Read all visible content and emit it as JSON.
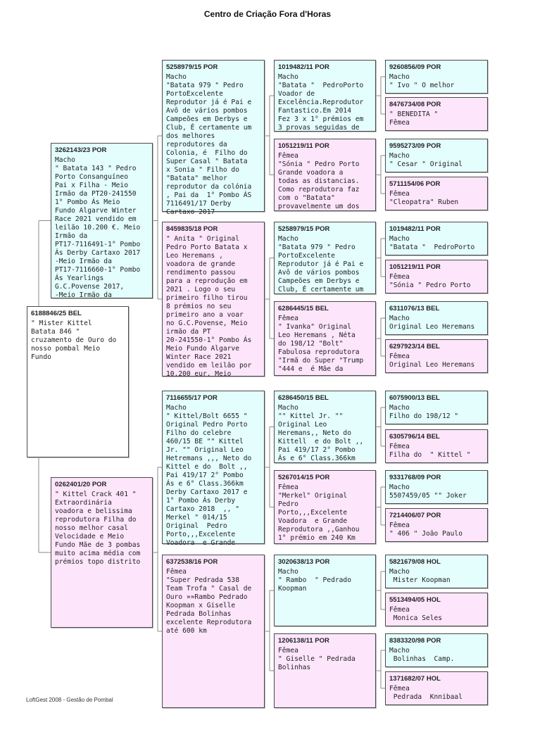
{
  "title": "Centro de Criação Fora d'Horas",
  "footer": "LoftGest 2008 - Gestão de Pombal",
  "colors": {
    "male": "#e4fdfd",
    "female": "#fde6fb",
    "border": "#4a4a4a"
  },
  "boxes": {
    "1": {
      "ring": "6188846/25 BEL",
      "gender": "none",
      "text": "\" Mister Kittel\nBatata 846 \"\ncruzamento de Ouro do\nnosso pombal Meio\nFundo"
    },
    "2": {
      "ring": "3262143/23 POR",
      "gender": "male",
      "text": "Macho\n\" Batata 143 \" Pedro\nPorto Consanguíneo\nPai x Filha - Meio\nIrmão da PT20-241550\n1° Pombo Ás Meio\nFundo Algarve Winter\nRace 2021 vendido em\nleilão 10.200 €. Meio\nIrmão da\nPT17-7116491-1° Pombo\nÁs Derby Cartaxo 2017\n-Meio Irmão da\nPT17-7116660-1° Pombo\nÁs Yearlings\nG.C.Povense 2017,\n-Meio Irmão da"
    },
    "3": {
      "ring": "0262401/20 POR",
      "gender": "female",
      "text": "\" Kittel Crack 401 \"\nExtraordinária\nvoadora e belissima\nreprodutora Filha do\nnosso melhor casal\nVelocidade e Meio\nFundo Mãe de 3 pombas\nmuito acima média com\nprémios topo distrito"
    },
    "4": {
      "ring": "5258979/15 POR",
      "gender": "male",
      "text": "Macho\n\"Batata 979 \" Pedro\nPortoExcelente\nReprodutor já é Pai e\nAvô de vários pombos\nCampeões em Derbys e\nClub, É certamente um\ndos melhores\nreprodutores da\nColonia, é  Filho do\nSuper Casal \" Batata\nx Sonia \" Filho do\n\"Batata\" melhor\nreprodutor da colónia\n, Pai da  1° Pombo ÁS\n7116491/17 Derby\nCartaxo 2017"
    },
    "5": {
      "ring": "8459835/18 POR",
      "gender": "female",
      "text": "\" Anita \" Original\nPedro Porto Batata x\nLeo Heremans ,\nvoadora de grande\nrendimento passou\npara a reprodução em\n2021 . Logo o seu\nprimeiro filho tirou\n8 prémios no seu\nprimeiro ano a voar\nno G.C.Povense, Meio\nirmão da PT\n20-241550-1° Pombo Ás\nMeio Fundo Algarve\nWinter Race 2021\nvendido em leilão por\n10.200 eur. Meio"
    },
    "6": {
      "ring": "7116655/17 POR",
      "gender": "male",
      "text": "Macho\n\" Kittel/Bolt 6655 \"\nOriginal Pedro Porto\nFilho do celebre\n460/15 BE \"\" Kittel\nJr. \"\" Original Leo\nHetremans ,,, Neto do\nKittel e do  Bolt ,,\nPai 419/17 2° Pombo\nÁs e 6° Class.366km\nDerby Cartaxo 2017 e\n1° Pombo Ás Derby\nCartaxo 2018  ,, \"\nMerkel \" 014/15\nOriginal  Pedro\nPorto,,,Excelente\nVoadora  e Grande"
    },
    "7": {
      "ring": "6372538/16 POR",
      "gender": "female",
      "text": "Fêmea\n\"Super Pedrada 538\nTeam Trofa \" Casal de\nOuro »»Rambo Pedrado\nKoopman x Giselle\nPedrada Bolinhas\nexcelente Reprodutora\naté 600 km"
    },
    "8": {
      "ring": "1019482/11 POR",
      "gender": "male",
      "text": "Macho\n\"Batata \"  PedroPorto\nVoador de\nExcelência.Reprodutor\nFantastico.Em 2014\nFez 3 x 1° prémios em\n3 provas seguidas de"
    },
    "9": {
      "ring": "1051219/11 POR",
      "gender": "female",
      "text": "Fêmea\n\"Sónia \" Pedro Porto\nGrande voadora a\ntodas as distancias.\nComo reprodutora faz\ncom o \"Batata\"\nprovavelmente um dos"
    },
    "10": {
      "ring": "5258979/15 POR",
      "gender": "male",
      "text": "Macho\n\"Batata 979 \" Pedro\nPortoExcelente\nReprodutor já é Pai e\nAvô de vários pombos\nCampeões em Derbys e\nClub, É certamente um"
    },
    "11": {
      "ring": "6286445/15 BEL",
      "gender": "female",
      "text": "Fêmea\n\" Ivanka\" Original\nLeo Heremans , Néta\ndo 198/12 \"Bolt\"\nFabulosa reprodutora\n\"Irmã do Super \"Trump\n\"444 e  é Mãe da"
    },
    "12": {
      "ring": "6286450/15 BEL",
      "gender": "male",
      "text": "Macho\n\"\" Kittel Jr. \"\"\nOriginal Leo\nHeremans,, Neto do\nKittell  e do Bolt ,,\nPai 419/17 2° Pombo\nÁs e 6° Class.366km"
    },
    "13": {
      "ring": "5267014/15 POR",
      "gender": "female",
      "text": "Fêmea\n\"Merkel\" Original\nPedro\nPorto,,,Excelente\nVoadora  e Grande\nReprodutora ,,Ganhou\n1° prémio em 240 Km"
    },
    "14": {
      "ring": "3020638/13 POR",
      "gender": "male",
      "text": "Macho\n\" Rambo  \" Pedrado\nKoopman"
    },
    "15": {
      "ring": "1206138/11 POR",
      "gender": "female",
      "text": "Fêmea\n\" Giselle \" Pedrada\nBolinhas"
    },
    "16": {
      "ring": "9260856/09 POR",
      "gender": "male",
      "text": "Macho\n\" Ivo \" O melhor"
    },
    "17": {
      "ring": "8476734/08 POR",
      "gender": "female",
      "text": "\" BENEDITA \"\nFêmea"
    },
    "18": {
      "ring": "9595273/09 POR",
      "gender": "male",
      "text": "Macho\n\" Cesar \" Original"
    },
    "19": {
      "ring": "5711154/06 POR",
      "gender": "female",
      "text": "Fêmea\n\"Cleopatra\" Ruben"
    },
    "20": {
      "ring": "1019482/11 POR",
      "gender": "male",
      "text": "Macho\n\"Batata \"  PedroPorto"
    },
    "21": {
      "ring": "1051219/11 POR",
      "gender": "female",
      "text": "Fêmea\n\"Sónia \" Pedro Porto"
    },
    "22": {
      "ring": "6311076/13 BEL",
      "gender": "male",
      "text": "Macho\nOriginal Leo Heremans"
    },
    "23": {
      "ring": "6297923/14 BEL",
      "gender": "female",
      "text": "Fêmea\nOriginal Leo Heremans"
    },
    "24": {
      "ring": "6075900/13 BEL",
      "gender": "male",
      "text": "Macho\nFilho do 198/12 \""
    },
    "25": {
      "ring": "6305796/14 BEL",
      "gender": "female",
      "text": "Fêmea\nFilha do  \" Kittel \""
    },
    "26": {
      "ring": "9331768/09 POR",
      "gender": "male",
      "text": "Macho\n5507459/05 \"\" Joker"
    },
    "27": {
      "ring": "7214406/07 POR",
      "gender": "female",
      "text": "Fêmea\n\" 406 \" João Paulo"
    },
    "28": {
      "ring": "5821679/08 HOL",
      "gender": "male",
      "text": "Macho\n Mister Koopman"
    },
    "29": {
      "ring": "5513494/05 HOL",
      "gender": "female",
      "text": "Fêmea\n Monica Seles"
    },
    "30": {
      "ring": "8383320/98 POR",
      "gender": "male",
      "text": "Macho\n Bolinhas  Camp."
    },
    "31": {
      "ring": "1371682/07 HOL",
      "gender": "female",
      "text": "Fêmea\n Pedrada  Knnibaal"
    }
  }
}
